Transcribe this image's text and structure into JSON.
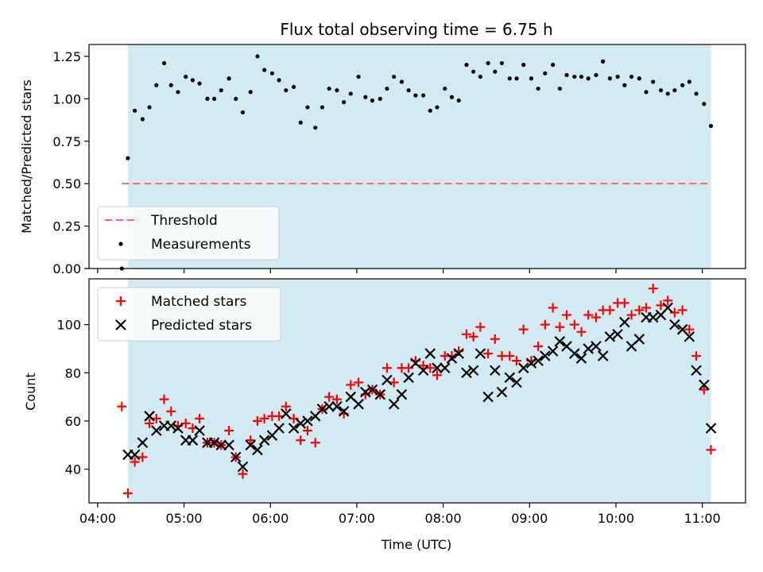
{
  "figure": {
    "title": "Flux total observing time = 6.75 h",
    "xlabel": "Time (UTC)",
    "x_ticks": [
      "04:00",
      "05:00",
      "06:00",
      "07:00",
      "08:00",
      "09:00",
      "10:00",
      "11:00"
    ]
  },
  "colors": {
    "span": "#add8e6",
    "threshold": "#ff6464",
    "matched": "#ff0000",
    "predicted": "#000000",
    "measurements": "#000000"
  },
  "chart_data": [
    {
      "type": "scatter",
      "panel": "top",
      "title": "Flux total observing time = 6.75 h",
      "ylabel": "Matched/Predicted stars",
      "xlabel": "",
      "x_unit": "hours UTC",
      "xlim": [
        3.9,
        11.5
      ],
      "ylim": [
        0.0,
        1.32
      ],
      "y_ticks": [
        "0.00",
        "0.25",
        "0.50",
        "0.75",
        "1.00",
        "1.25"
      ],
      "y_tick_values": [
        0,
        0.25,
        0.5,
        0.75,
        1.0,
        1.25
      ],
      "observing_span": [
        4.35,
        11.1
      ],
      "threshold": {
        "name": "Threshold",
        "y": 0.5,
        "x": [
          4.28,
          11.1
        ]
      },
      "legend": {
        "placement": "lower-left",
        "entries": [
          "Threshold",
          "Measurements"
        ]
      },
      "series": [
        {
          "name": "Measurements",
          "marker": "dot",
          "x": [
            4.28,
            4.35,
            4.43,
            4.52,
            4.6,
            4.68,
            4.77,
            4.85,
            4.93,
            5.02,
            5.1,
            5.18,
            5.27,
            5.35,
            5.43,
            5.52,
            5.6,
            5.68,
            5.77,
            5.85,
            5.93,
            6.02,
            6.1,
            6.18,
            6.27,
            6.35,
            6.43,
            6.52,
            6.6,
            6.68,
            6.77,
            6.85,
            6.93,
            7.02,
            7.1,
            7.18,
            7.27,
            7.35,
            7.43,
            7.52,
            7.6,
            7.68,
            7.77,
            7.85,
            7.93,
            8.02,
            8.1,
            8.18,
            8.27,
            8.35,
            8.43,
            8.52,
            8.6,
            8.68,
            8.77,
            8.85,
            8.93,
            9.02,
            9.1,
            9.18,
            9.27,
            9.35,
            9.43,
            9.52,
            9.6,
            9.68,
            9.77,
            9.85,
            9.93,
            10.02,
            10.1,
            10.18,
            10.27,
            10.35,
            10.43,
            10.52,
            10.6,
            10.68,
            10.77,
            10.85,
            10.93,
            11.02,
            11.1
          ],
          "y": [
            0.0,
            0.65,
            0.93,
            0.88,
            0.95,
            1.08,
            1.21,
            1.08,
            1.04,
            1.13,
            1.11,
            1.09,
            1.0,
            1.0,
            1.05,
            1.12,
            1.0,
            0.92,
            1.04,
            1.25,
            1.17,
            1.15,
            1.11,
            1.05,
            1.07,
            0.86,
            0.95,
            0.83,
            0.95,
            1.06,
            1.05,
            0.98,
            1.03,
            1.13,
            1.01,
            0.99,
            1.0,
            1.06,
            1.13,
            1.1,
            1.05,
            1.02,
            1.02,
            0.93,
            0.95,
            1.06,
            1.01,
            0.99,
            1.2,
            1.16,
            1.13,
            1.21,
            1.16,
            1.21,
            1.12,
            1.12,
            1.2,
            1.12,
            1.06,
            1.15,
            1.2,
            1.06,
            1.14,
            1.13,
            1.13,
            1.12,
            1.14,
            1.22,
            1.12,
            1.13,
            1.08,
            1.13,
            1.12,
            1.04,
            1.1,
            1.05,
            1.03,
            1.05,
            1.08,
            1.1,
            1.03,
            0.97,
            0.84
          ]
        }
      ]
    },
    {
      "type": "scatter",
      "panel": "bottom",
      "title": "",
      "ylabel": "Count",
      "xlabel": "Time (UTC)",
      "x_unit": "hours UTC",
      "xlim": [
        3.9,
        11.5
      ],
      "ylim": [
        26,
        119
      ],
      "y_ticks": [
        "40",
        "60",
        "80",
        "100"
      ],
      "y_tick_values": [
        40,
        60,
        80,
        100
      ],
      "observing_span": [
        4.35,
        11.1
      ],
      "legend": {
        "placement": "upper-left",
        "entries": [
          "Matched stars",
          "Predicted stars"
        ]
      },
      "series": [
        {
          "name": "Matched stars",
          "marker": "plus",
          "x": [
            4.28,
            4.35,
            4.43,
            4.52,
            4.6,
            4.68,
            4.77,
            4.85,
            4.93,
            5.02,
            5.1,
            5.18,
            5.27,
            5.35,
            5.43,
            5.52,
            5.6,
            5.68,
            5.77,
            5.85,
            5.93,
            6.02,
            6.1,
            6.18,
            6.27,
            6.35,
            6.43,
            6.52,
            6.6,
            6.68,
            6.77,
            6.85,
            6.93,
            7.02,
            7.1,
            7.18,
            7.27,
            7.35,
            7.43,
            7.52,
            7.6,
            7.68,
            7.77,
            7.85,
            7.93,
            8.02,
            8.1,
            8.18,
            8.27,
            8.35,
            8.43,
            8.52,
            8.6,
            8.68,
            8.77,
            8.85,
            8.93,
            9.02,
            9.1,
            9.18,
            9.27,
            9.35,
            9.43,
            9.52,
            9.6,
            9.68,
            9.77,
            9.85,
            9.93,
            10.02,
            10.1,
            10.18,
            10.27,
            10.35,
            10.43,
            10.52,
            10.6,
            10.68,
            10.77,
            10.85,
            10.93,
            11.02,
            11.1
          ],
          "y": [
            66,
            30,
            43,
            45,
            59,
            61,
            69,
            64,
            58,
            59,
            57,
            61,
            51,
            51,
            50,
            56,
            45,
            38,
            52,
            60,
            61,
            62,
            62,
            66,
            61,
            52,
            56,
            51,
            65,
            70,
            69,
            63,
            75,
            76,
            71,
            73,
            71,
            82,
            76,
            82,
            82,
            85,
            83,
            82,
            79,
            87,
            87,
            89,
            96,
            95,
            99,
            88,
            94,
            87,
            87,
            85,
            98,
            85,
            91,
            100,
            107,
            99,
            104,
            100,
            97,
            104,
            103,
            106,
            106,
            109,
            109,
            104,
            106,
            107,
            115,
            108,
            110,
            105,
            106,
            98,
            87,
            73,
            48
          ]
        },
        {
          "name": "Predicted stars",
          "marker": "x",
          "x": [
            4.35,
            4.43,
            4.52,
            4.6,
            4.68,
            4.77,
            4.85,
            4.93,
            5.02,
            5.1,
            5.18,
            5.27,
            5.35,
            5.43,
            5.52,
            5.6,
            5.68,
            5.77,
            5.85,
            5.93,
            6.02,
            6.1,
            6.18,
            6.27,
            6.35,
            6.43,
            6.52,
            6.6,
            6.68,
            6.77,
            6.85,
            6.93,
            7.02,
            7.1,
            7.18,
            7.27,
            7.35,
            7.43,
            7.52,
            7.6,
            7.68,
            7.77,
            7.85,
            7.93,
            8.02,
            8.1,
            8.18,
            8.27,
            8.35,
            8.43,
            8.52,
            8.6,
            8.68,
            8.77,
            8.85,
            8.93,
            9.02,
            9.1,
            9.18,
            9.27,
            9.35,
            9.43,
            9.52,
            9.6,
            9.68,
            9.77,
            9.85,
            9.93,
            10.02,
            10.1,
            10.18,
            10.27,
            10.35,
            10.43,
            10.52,
            10.6,
            10.68,
            10.77,
            10.85,
            10.93,
            11.02,
            11.1
          ],
          "y": [
            46,
            46,
            51,
            62,
            56,
            58,
            58,
            57,
            52,
            52,
            56,
            51,
            51,
            50,
            50,
            45,
            41,
            50,
            48,
            52,
            54,
            57,
            63,
            57,
            59,
            60,
            62,
            65,
            66,
            66,
            64,
            70,
            67,
            72,
            73,
            71,
            77,
            67,
            71,
            78,
            84,
            81,
            88,
            82,
            82,
            86,
            88,
            80,
            81,
            88,
            70,
            81,
            72,
            78,
            76,
            82,
            84,
            85,
            87,
            89,
            93,
            91,
            88,
            86,
            90,
            91,
            87,
            95,
            96,
            101,
            91,
            94,
            103,
            103,
            104,
            107,
            100,
            98,
            95,
            81,
            75,
            57
          ]
        }
      ]
    }
  ]
}
